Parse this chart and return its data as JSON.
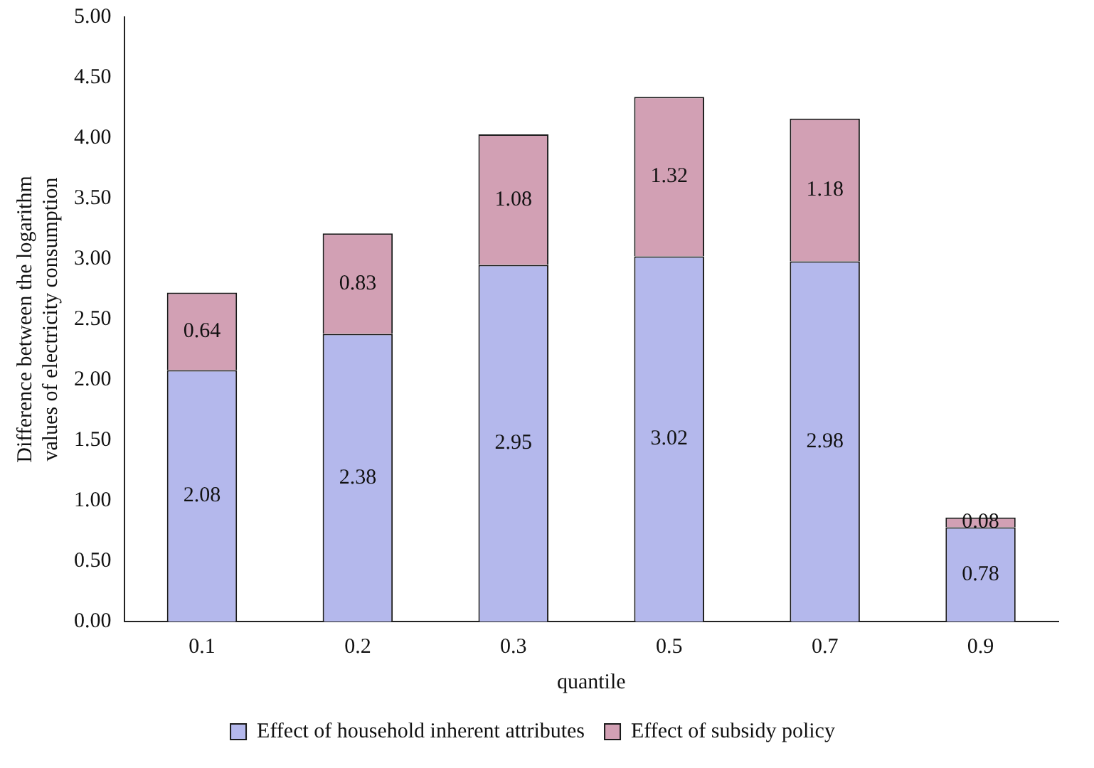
{
  "chart_data": {
    "type": "bar",
    "stacked": true,
    "xlabel": "quantile",
    "ylabel": "Difference between the logarithm values of electricity consumption",
    "categories": [
      "0.1",
      "0.2",
      "0.3",
      "0.5",
      "0.7",
      "0.9"
    ],
    "series": [
      {
        "name": "Effect of household inherent attributes",
        "color": "#b4b8ec",
        "values": [
          2.08,
          2.38,
          2.95,
          3.02,
          2.98,
          0.78
        ]
      },
      {
        "name": "Effect of subsidy policy",
        "color": "#d2a0b4",
        "values": [
          0.64,
          0.83,
          1.08,
          1.32,
          1.18,
          0.08
        ]
      }
    ],
    "ylim": [
      0,
      5
    ],
    "yticks": [
      {
        "value": 0,
        "label": "0.00"
      },
      {
        "value": 0.5,
        "label": "0.50"
      },
      {
        "value": 1,
        "label": "1.00"
      },
      {
        "value": 1.5,
        "label": "1.50"
      },
      {
        "value": 2,
        "label": "2.00"
      },
      {
        "value": 2.5,
        "label": "2.50"
      },
      {
        "value": 3,
        "label": "3.00"
      },
      {
        "value": 3.5,
        "label": "3.50"
      },
      {
        "value": 4,
        "label": "4.00"
      },
      {
        "value": 4.5,
        "label": "4.50"
      },
      {
        "value": 5,
        "label": "5.00"
      }
    ],
    "data_labels": true,
    "grid": false,
    "legend": "bottom"
  }
}
